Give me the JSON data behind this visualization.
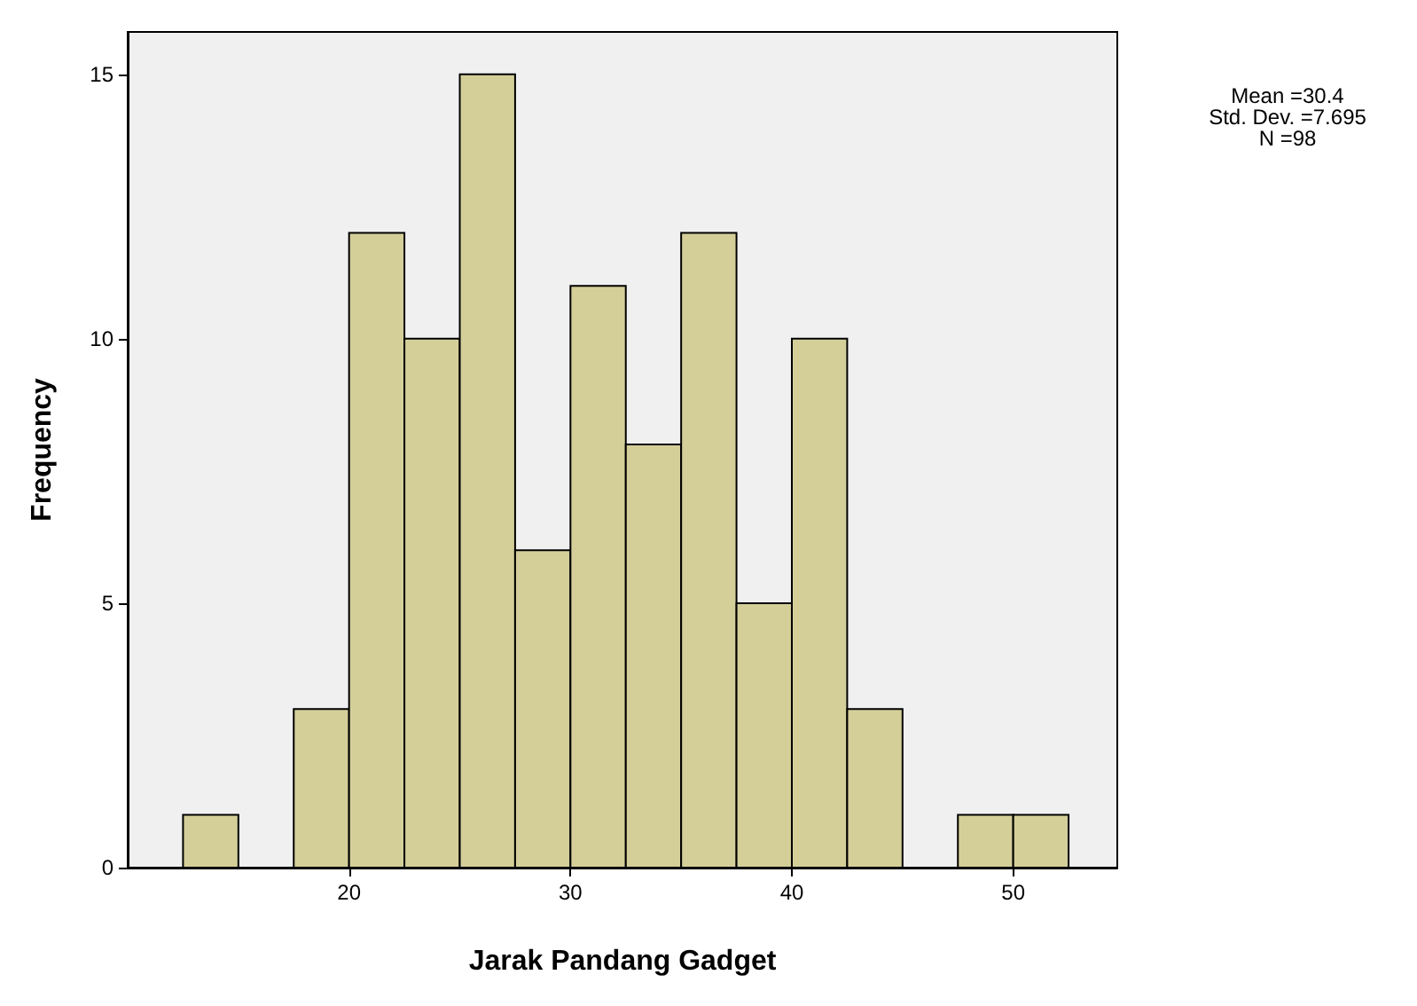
{
  "chart_data": {
    "type": "histogram",
    "xlabel": "Jarak Pandang Gadget",
    "ylabel": "Frequency",
    "bins": [
      12.5,
      15,
      17.5,
      20,
      22.5,
      25,
      27.5,
      30,
      32.5,
      35,
      37.5,
      40,
      42.5,
      45,
      47.5,
      50,
      52.5
    ],
    "values": [
      1,
      0,
      3,
      12,
      10,
      15,
      6,
      11,
      8,
      12,
      5,
      10,
      3,
      0,
      1,
      1
    ],
    "color": "#d4cf99",
    "xlim": [
      10,
      54.7
    ],
    "xticks": [
      20,
      30,
      40,
      50
    ],
    "ylim": [
      0,
      15.8
    ],
    "yticks": [
      0,
      5,
      10,
      15
    ],
    "grid": false,
    "annotations": [
      "Mean =30.4",
      "Std. Dev. =7.695",
      "N =98"
    ]
  }
}
